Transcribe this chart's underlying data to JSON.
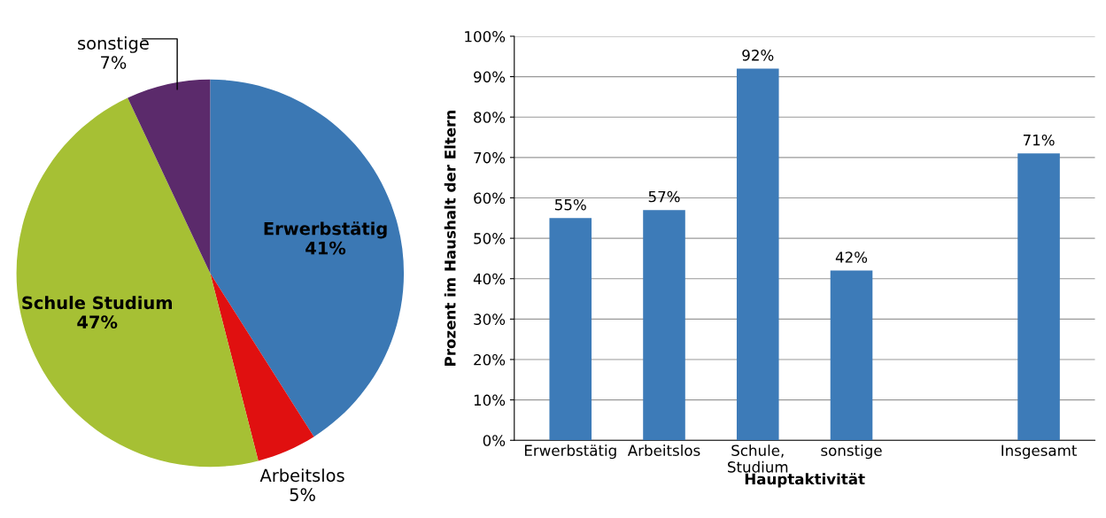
{
  "chart_data": [
    {
      "type": "pie",
      "categories": [
        "Erwerbstätig",
        "Arbeitslos",
        "Schule Studium",
        "sonstige"
      ],
      "values": [
        41,
        5,
        47,
        7
      ],
      "colors": [
        "#3b78b4",
        "#e01010",
        "#a6c034",
        "#5b2a6b"
      ],
      "value_labels": [
        "41%",
        "5%",
        "47%",
        "7%"
      ]
    },
    {
      "type": "bar",
      "categories": [
        "Erwerbstätig",
        "Arbeitslos",
        "Schule,\nStudium",
        "sonstige",
        null,
        "Insgesamt"
      ],
      "values": [
        55,
        57,
        92,
        42,
        null,
        71
      ],
      "color": "#3d7bb8",
      "value_labels": [
        "55%",
        "57%",
        "92%",
        "42%",
        null,
        "71%"
      ],
      "xlabel": "Hauptaktivität",
      "ylabel": "Prozent im Haushalt der Eltern",
      "ylim": [
        0,
        100
      ],
      "yticks": [
        {
          "value": 0,
          "label": "0%"
        },
        {
          "value": 10,
          "label": "10%"
        },
        {
          "value": 20,
          "label": "20%"
        },
        {
          "value": 30,
          "label": "30%"
        },
        {
          "value": 40,
          "label": "40%"
        },
        {
          "value": 50,
          "label": "50%"
        },
        {
          "value": 60,
          "label": "60%"
        },
        {
          "value": 70,
          "label": "70%"
        },
        {
          "value": 80,
          "label": "80%"
        },
        {
          "value": 90,
          "label": "90%"
        },
        {
          "value": 100,
          "label": "100%"
        }
      ],
      "grid": "y"
    }
  ]
}
